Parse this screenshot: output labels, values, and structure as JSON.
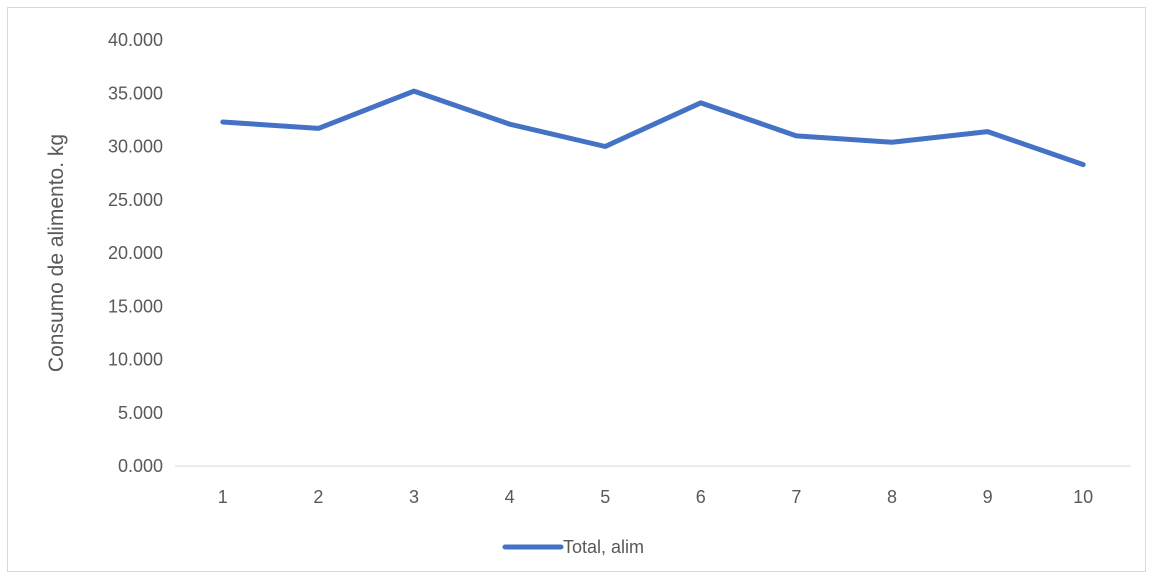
{
  "chart_data": {
    "type": "line",
    "title": "",
    "xlabel": "",
    "ylabel": "Consumo de alimento. kg",
    "categories": [
      "1",
      "2",
      "3",
      "4",
      "5",
      "6",
      "7",
      "8",
      "9",
      "10"
    ],
    "series": [
      {
        "name": "Total, alim",
        "values": [
          32.3,
          31.7,
          35.2,
          32.1,
          30.0,
          34.1,
          31.0,
          30.4,
          31.4,
          28.3
        ],
        "color": "#4472c4"
      }
    ],
    "ylim": [
      0,
      40
    ],
    "y_ticks": [
      "0.000",
      "5.000",
      "10.000",
      "15.000",
      "20.000",
      "25.000",
      "30.000",
      "35.000",
      "40.000"
    ],
    "grid": false,
    "legend_position": "bottom"
  }
}
